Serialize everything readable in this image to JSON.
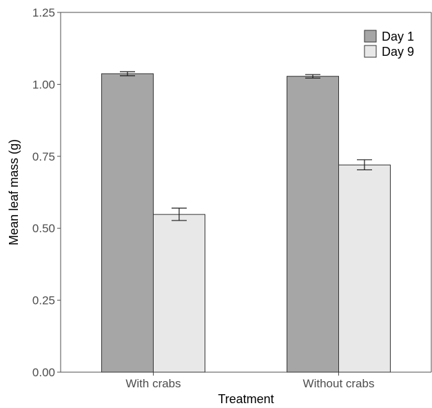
{
  "chart_data": {
    "type": "bar",
    "xlabel": "Treatment",
    "ylabel": "Mean leaf mass (g)",
    "ylim": [
      0,
      1.25
    ],
    "yticks": [
      0,
      0.25,
      0.5,
      0.75,
      1.0,
      1.25
    ],
    "ytick_labels": [
      "0.00",
      "0.25",
      "0.50",
      "0.75",
      "1.00",
      "1.25"
    ],
    "categories": [
      "With crabs",
      "Without crabs"
    ],
    "series": [
      {
        "name": "Day 1",
        "color": "#a6a6a6",
        "values": [
          1.037,
          1.028
        ],
        "error_low": [
          1.03,
          1.022
        ],
        "error_high": [
          1.044,
          1.034
        ]
      },
      {
        "name": "Day 9",
        "color": "#e8e8e8",
        "values": [
          0.548,
          0.72
        ],
        "error_low": [
          0.527,
          0.703
        ],
        "error_high": [
          0.57,
          0.738
        ]
      }
    ],
    "grid": false,
    "legend_position": "top-right"
  }
}
